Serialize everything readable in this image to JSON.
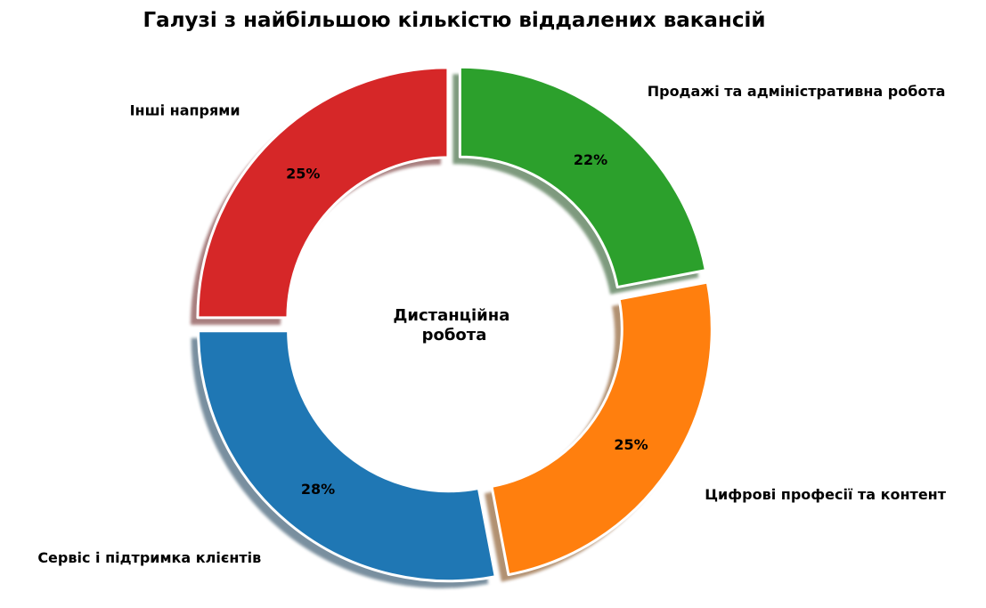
{
  "chart_data": {
    "type": "pie",
    "variant": "donut-exploded",
    "title": "Галузі з найбільшою кількістю віддалених вакансій",
    "center_label": [
      "Дистанційна",
      "робота"
    ],
    "start_angle_deg": 90,
    "direction": "counterclockwise",
    "slices": [
      {
        "label": "Інші напрями",
        "value": 25,
        "pct_label": "25%",
        "color": "#d62728"
      },
      {
        "label": "Сервіс і підтримка клієнтів",
        "value": 28,
        "pct_label": "28%",
        "color": "#1f77b4"
      },
      {
        "label": "Цифрові професії та контент",
        "value": 25,
        "pct_label": "25%",
        "color": "#ff7f0e"
      },
      {
        "label": "Продажі та адміністративна робота",
        "value": 22,
        "pct_label": "22%",
        "color": "#2ca02c"
      }
    ]
  }
}
